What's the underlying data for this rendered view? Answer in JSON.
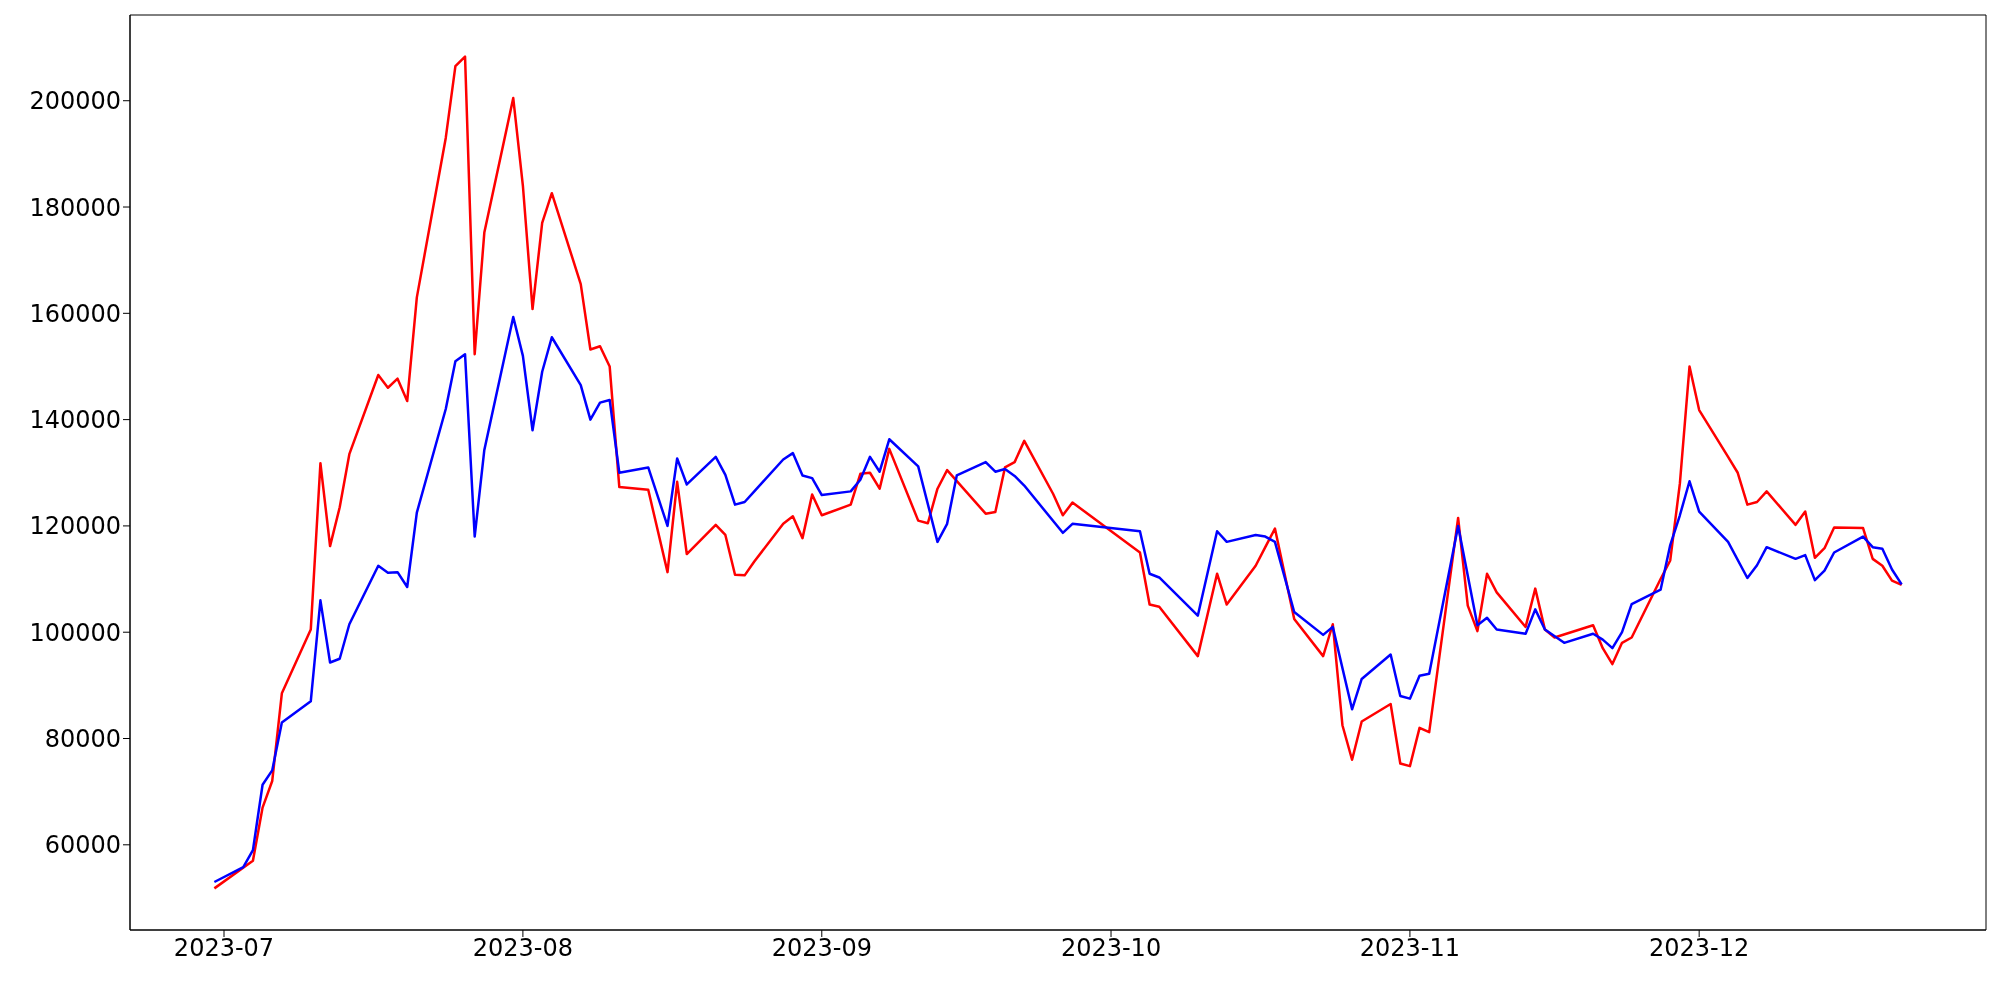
{
  "chart_data": {
    "type": "line",
    "xlim": [
      "2023-06-21T06:00",
      "2023-12-30T18:00"
    ],
    "ylim": [
      43970,
      216130
    ],
    "xticks": [
      {
        "value": "2023-07-01",
        "label": "2023-07"
      },
      {
        "value": "2023-08-01",
        "label": "2023-08"
      },
      {
        "value": "2023-09-01",
        "label": "2023-09"
      },
      {
        "value": "2023-10-01",
        "label": "2023-10"
      },
      {
        "value": "2023-11-01",
        "label": "2023-11"
      },
      {
        "value": "2023-12-01",
        "label": "2023-12"
      }
    ],
    "yticks": [
      60000,
      80000,
      100000,
      120000,
      140000,
      160000,
      180000,
      200000
    ],
    "legend": false,
    "marker": "none",
    "line_style": "solid",
    "series": [
      {
        "color": "#ff0000",
        "x": [
          "2023-06-30",
          "2023-07-04",
          "2023-07-05",
          "2023-07-06",
          "2023-07-07",
          "2023-07-10",
          "2023-07-11",
          "2023-07-12",
          "2023-07-13",
          "2023-07-14",
          "2023-07-17",
          "2023-07-18",
          "2023-07-19",
          "2023-07-20",
          "2023-07-21",
          "2023-07-24",
          "2023-07-25",
          "2023-07-26",
          "2023-07-27",
          "2023-07-28",
          "2023-07-31",
          "2023-08-01",
          "2023-08-02",
          "2023-08-03",
          "2023-08-04",
          "2023-08-07",
          "2023-08-08",
          "2023-08-09",
          "2023-08-10",
          "2023-08-11",
          "2023-08-14",
          "2023-08-16",
          "2023-08-17",
          "2023-08-18",
          "2023-08-21",
          "2023-08-22",
          "2023-08-23",
          "2023-08-24",
          "2023-08-25",
          "2023-08-28",
          "2023-08-29",
          "2023-08-30",
          "2023-08-31",
          "2023-09-01",
          "2023-09-04",
          "2023-09-05",
          "2023-09-06",
          "2023-09-07",
          "2023-09-08",
          "2023-09-11",
          "2023-09-12",
          "2023-09-13",
          "2023-09-14",
          "2023-09-18",
          "2023-09-19",
          "2023-09-20",
          "2023-09-21",
          "2023-09-22",
          "2023-09-25",
          "2023-09-26",
          "2023-09-27",
          "2023-10-04",
          "2023-10-05",
          "2023-10-06",
          "2023-10-10",
          "2023-10-12",
          "2023-10-13",
          "2023-10-16",
          "2023-10-17",
          "2023-10-18",
          "2023-10-20",
          "2023-10-23",
          "2023-10-24",
          "2023-10-25",
          "2023-10-26",
          "2023-10-27",
          "2023-10-30",
          "2023-10-31",
          "2023-11-01",
          "2023-11-02",
          "2023-11-03",
          "2023-11-06",
          "2023-11-07",
          "2023-11-08",
          "2023-11-09",
          "2023-11-10",
          "2023-11-13",
          "2023-11-14",
          "2023-11-15",
          "2023-11-16",
          "2023-11-20",
          "2023-11-21",
          "2023-11-22",
          "2023-11-23",
          "2023-11-24",
          "2023-11-27",
          "2023-11-28",
          "2023-11-29",
          "2023-11-30",
          "2023-12-01",
          "2023-12-04",
          "2023-12-05",
          "2023-12-06",
          "2023-12-07",
          "2023-12-08",
          "2023-12-11",
          "2023-12-12",
          "2023-12-13",
          "2023-12-14",
          "2023-12-15",
          "2023-12-18",
          "2023-12-19",
          "2023-12-20",
          "2023-12-21",
          "2023-12-22"
        ],
        "values": [
          51800,
          57000,
          67000,
          72000,
          88500,
          100500,
          131800,
          116200,
          123500,
          133500,
          148400,
          146000,
          147700,
          143500,
          163000,
          193000,
          206500,
          208300,
          152300,
          175200,
          200500,
          184000,
          160800,
          177000,
          182600,
          165500,
          153200,
          153800,
          150000,
          127300,
          126800,
          111300,
          128300,
          114700,
          120200,
          118300,
          110800,
          110700,
          113300,
          120400,
          121800,
          117700,
          125900,
          122000,
          124000,
          129800,
          130000,
          127000,
          134500,
          121000,
          120500,
          127000,
          130500,
          122300,
          122600,
          131000,
          132000,
          136000,
          126000,
          122000,
          124400,
          115000,
          105200,
          104800,
          95500,
          111000,
          105200,
          112500,
          116000,
          119500,
          102500,
          95500,
          101500,
          82500,
          76000,
          83200,
          86500,
          75300,
          74800,
          82000,
          81200,
          121500,
          105000,
          100200,
          111000,
          107500,
          101000,
          108200,
          100500,
          99000,
          101300,
          97000,
          94000,
          98000,
          99000,
          110000,
          113500,
          128000,
          150000,
          141800,
          133000,
          130000,
          124000,
          124500,
          126500,
          120200,
          122700,
          114000,
          115800,
          119700,
          119600,
          113800,
          112500,
          109700,
          108900
        ]
      },
      {
        "color": "#0000ff",
        "x": [
          "2023-06-30",
          "2023-07-03",
          "2023-07-04",
          "2023-07-05",
          "2023-07-06",
          "2023-07-07",
          "2023-07-10",
          "2023-07-11",
          "2023-07-12",
          "2023-07-13",
          "2023-07-14",
          "2023-07-17",
          "2023-07-18",
          "2023-07-19",
          "2023-07-20",
          "2023-07-21",
          "2023-07-24",
          "2023-07-25",
          "2023-07-26",
          "2023-07-27",
          "2023-07-28",
          "2023-07-31",
          "2023-08-01",
          "2023-08-02",
          "2023-08-03",
          "2023-08-04",
          "2023-08-07",
          "2023-08-08",
          "2023-08-09",
          "2023-08-10",
          "2023-08-11",
          "2023-08-14",
          "2023-08-16",
          "2023-08-17",
          "2023-08-18",
          "2023-08-21",
          "2023-08-22",
          "2023-08-23",
          "2023-08-24",
          "2023-08-25",
          "2023-08-28",
          "2023-08-29",
          "2023-08-30",
          "2023-08-31",
          "2023-09-01",
          "2023-09-04",
          "2023-09-05",
          "2023-09-06",
          "2023-09-07",
          "2023-09-08",
          "2023-09-11",
          "2023-09-13",
          "2023-09-14",
          "2023-09-15",
          "2023-09-18",
          "2023-09-19",
          "2023-09-20",
          "2023-09-21",
          "2023-09-22",
          "2023-09-26",
          "2023-09-27",
          "2023-10-04",
          "2023-10-05",
          "2023-10-06",
          "2023-10-10",
          "2023-10-12",
          "2023-10-13",
          "2023-10-16",
          "2023-10-17",
          "2023-10-18",
          "2023-10-20",
          "2023-10-23",
          "2023-10-24",
          "2023-10-26",
          "2023-10-27",
          "2023-10-30",
          "2023-10-31",
          "2023-11-01",
          "2023-11-02",
          "2023-11-03",
          "2023-11-06",
          "2023-11-08",
          "2023-11-09",
          "2023-11-10",
          "2023-11-13",
          "2023-11-14",
          "2023-11-15",
          "2023-11-17",
          "2023-11-20",
          "2023-11-21",
          "2023-11-22",
          "2023-11-23",
          "2023-11-24",
          "2023-11-27",
          "2023-11-28",
          "2023-11-29",
          "2023-11-30",
          "2023-12-01",
          "2023-12-04",
          "2023-12-06",
          "2023-12-07",
          "2023-12-08",
          "2023-12-11",
          "2023-12-12",
          "2023-12-13",
          "2023-12-14",
          "2023-12-15",
          "2023-12-18",
          "2023-12-19",
          "2023-12-20",
          "2023-12-21",
          "2023-12-22"
        ],
        "values": [
          53000,
          55800,
          59000,
          71300,
          74000,
          83000,
          87000,
          106000,
          94300,
          95000,
          101500,
          112500,
          111200,
          111300,
          108500,
          122500,
          142000,
          151000,
          152300,
          118000,
          134300,
          159300,
          152000,
          138000,
          149000,
          155500,
          146500,
          140000,
          143200,
          143700,
          130000,
          131000,
          120000,
          132700,
          127800,
          133000,
          129600,
          124000,
          124500,
          126500,
          132500,
          133700,
          129500,
          129000,
          125800,
          126500,
          128700,
          133000,
          130200,
          136300,
          131200,
          117000,
          120400,
          129500,
          132000,
          130200,
          130700,
          129400,
          127600,
          118700,
          120400,
          119000,
          111000,
          110300,
          103100,
          119000,
          117000,
          118300,
          118000,
          117000,
          103800,
          99500,
          101000,
          85500,
          91200,
          95800,
          88000,
          87500,
          91800,
          92200,
          120000,
          101300,
          102700,
          100500,
          99700,
          104300,
          100500,
          98000,
          99700,
          98600,
          97000,
          100000,
          105300,
          108000,
          116400,
          122000,
          128400,
          122700,
          117000,
          110200,
          112600,
          116000,
          113800,
          114500,
          109800,
          111600,
          115000,
          118000,
          116000,
          115700,
          111800,
          109000
        ]
      }
    ]
  }
}
